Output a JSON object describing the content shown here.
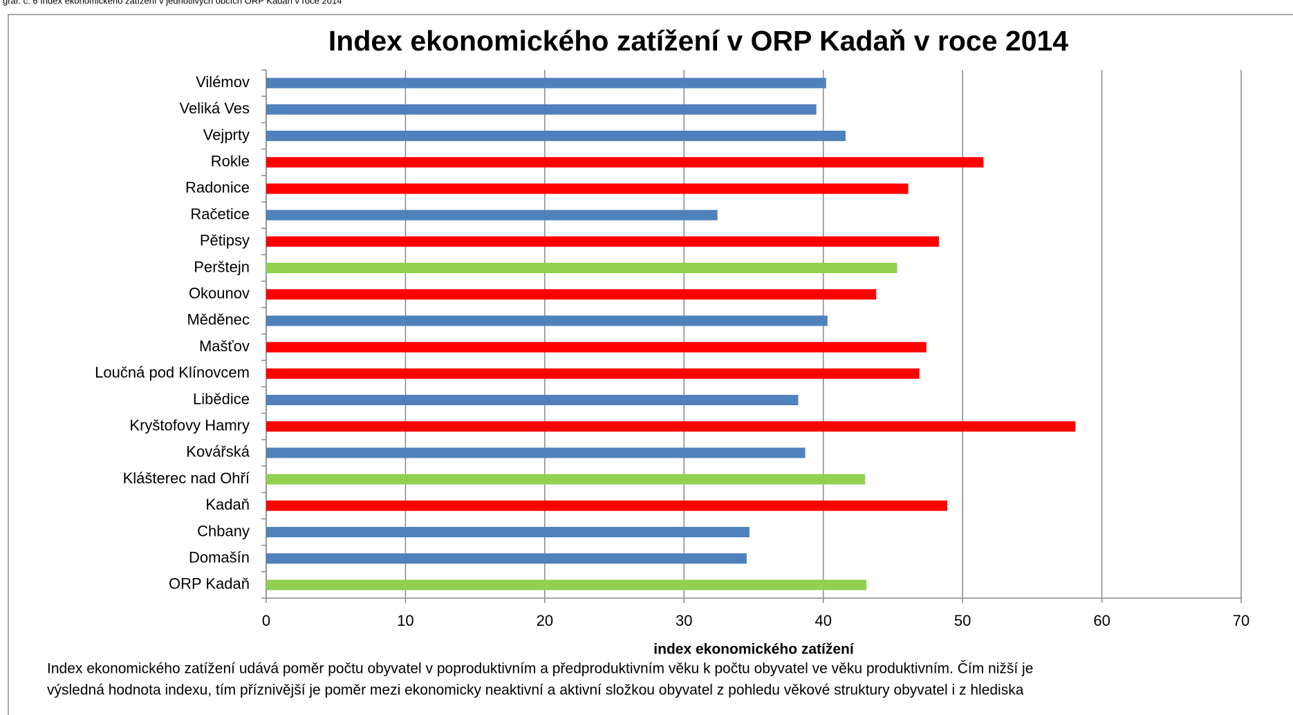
{
  "caption": "graf. č. 6 Index ekonomického zatížení v jednotlivých obcích ORP Kadaň v roce 2014",
  "chart_data": {
    "type": "bar",
    "orientation": "horizontal",
    "title": "Index ekonomického zatížení v ORP Kadaň v roce 2014",
    "x_label": "index ekonomického zatížení",
    "categories": [
      "Vilémov",
      "Veliká Ves",
      "Vejprty",
      "Rokle",
      "Radonice",
      "Račetice",
      "Pětipsy",
      "Perštejn",
      "Okounov",
      "Měděnec",
      "Mašťov",
      "Loučná pod Klínovcem",
      "Libědice",
      "Kryštofovy Hamry",
      "Kovářská",
      "Klášterec nad Ohří",
      "Kadaň",
      "Chbany",
      "Domašín",
      "ORP Kadaň"
    ],
    "values": [
      40.2,
      39.5,
      41.6,
      51.5,
      46.1,
      32.4,
      48.3,
      45.3,
      43.8,
      40.3,
      47.4,
      46.9,
      38.2,
      58.1,
      38.7,
      43.0,
      48.9,
      34.7,
      34.5,
      43.1
    ],
    "colors": [
      "#4f81bd",
      "#4f81bd",
      "#4f81bd",
      "#ff0000",
      "#ff0000",
      "#4f81bd",
      "#ff0000",
      "#92d050",
      "#ff0000",
      "#4f81bd",
      "#ff0000",
      "#ff0000",
      "#4f81bd",
      "#ff0000",
      "#4f81bd",
      "#92d050",
      "#ff0000",
      "#4f81bd",
      "#4f81bd",
      "#92d050"
    ],
    "xlim": [
      0,
      70
    ],
    "xticks": [
      0,
      10,
      20,
      30,
      40,
      50,
      60,
      70
    ],
    "grid": true
  },
  "notes": [
    "Index ekonomického zatížení udává poměr počtu obyvatel v poproduktivním a předproduktivním věku k počtu obyvatel ve věku produktivním. Čím nižší je",
    "výsledná hodnota indexu, tím příznivější je poměr mezi ekonomicky neaktivní a aktivní složkou obyvatel z pohledu věkové struktury obyvatel i z hlediska"
  ]
}
